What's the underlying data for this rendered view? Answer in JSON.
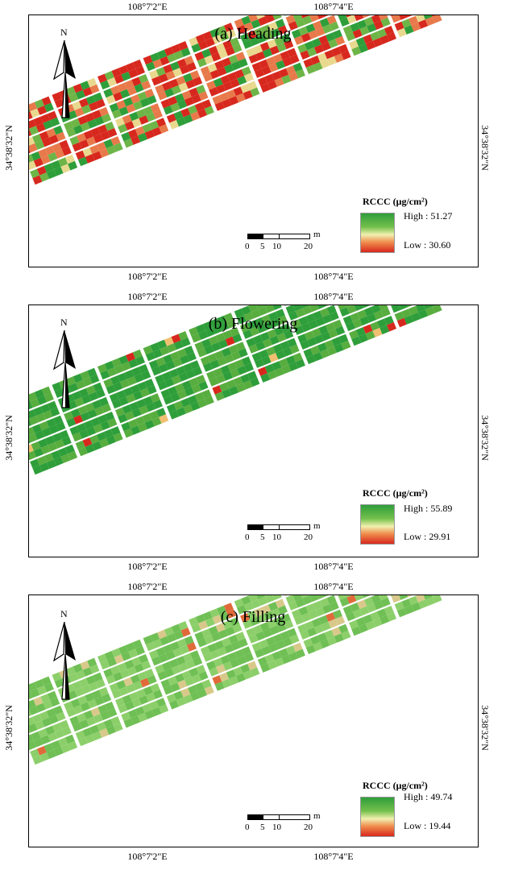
{
  "panels": [
    {
      "title": "(a) Heading",
      "top_ticks": [
        "108°7'2\"E",
        "108°7'4\"E"
      ],
      "bottom_ticks": [
        "108°7'2\"E",
        "108°7'4\"E"
      ],
      "left_tick": "34°38'32\"N",
      "right_tick": "34°38'32\"N",
      "north": "N",
      "legend_title": "RCCC (μg/cm²)",
      "legend_high": "High : 51.27",
      "legend_low": "Low : 30.60",
      "scale_unit": "m",
      "scale_ticks": [
        "0",
        "5",
        "10",
        "20"
      ],
      "stress": "high"
    },
    {
      "title": "(b) Flowering",
      "top_ticks": [
        "108°7'2\"E",
        "108°7'4\"E"
      ],
      "bottom_ticks": [
        "108°7'2\"E",
        "108°7'4\"E"
      ],
      "left_tick": "34°38'32\"N",
      "right_tick": "34°38'32\"N",
      "north": "N",
      "legend_title": "RCCC (μg/cm²)",
      "legend_high": "High : 55.89",
      "legend_low": "Low : 29.91",
      "scale_unit": "m",
      "scale_ticks": [
        "0",
        "5",
        "10",
        "20"
      ],
      "stress": "low"
    },
    {
      "title": "(c) Filling",
      "top_ticks": [
        "108°7'2\"E",
        "108°7'4\"E"
      ],
      "bottom_ticks": [
        "108°7'2\"E",
        "108°7'4\"E"
      ],
      "left_tick": "34°38'32\"N",
      "right_tick": "34°38'32\"N",
      "north": "N",
      "legend_title": "RCCC (μg/cm²)",
      "legend_high": "High : 49.74",
      "legend_low": "Low : 19.44",
      "scale_unit": "m",
      "scale_ticks": [
        "0",
        "5",
        "10",
        "20"
      ],
      "stress": "pale"
    }
  ],
  "colors": {
    "high": "#2e9e3a",
    "mid": "#f2f0b0",
    "low": "#d7281e",
    "pale_green": "#8ccf6a"
  }
}
